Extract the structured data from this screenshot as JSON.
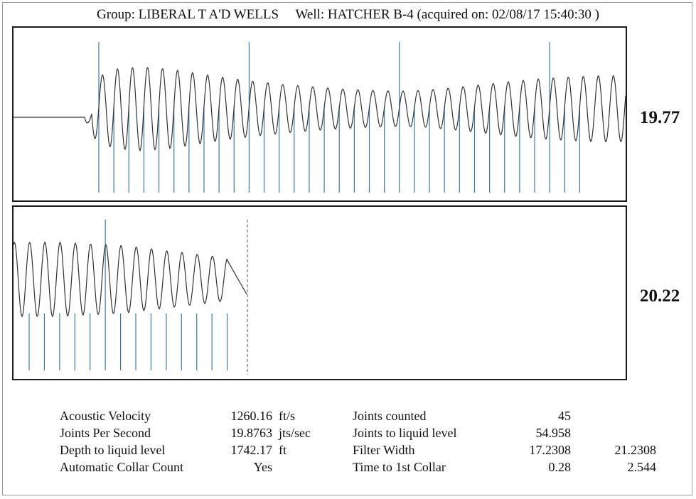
{
  "header": {
    "group": "Group: LIBERAL T A'D WELLS",
    "well": "Well: HATCHER B-4 (acquired on: 02/08/17 15:40:30 )"
  },
  "panels": {
    "top_rate": "19.77",
    "bottom_rate": "20.22"
  },
  "colors": {
    "waveform": "#333333",
    "collar_marker": "#3b7ab0",
    "frame": "#1a1a1a"
  },
  "stats": {
    "rows": [
      {
        "label1": "Acoustic Velocity",
        "val1": "1260.16",
        "unit1": "ft/s",
        "label2": "Joints counted",
        "val2": "45",
        "val3": ""
      },
      {
        "label1": "Joints Per Second",
        "val1": "19.8763",
        "unit1": "jts/sec",
        "label2": "Joints to liquid level",
        "val2": "54.958",
        "val3": ""
      },
      {
        "label1": "Depth to liquid level",
        "val1": "1742.17",
        "unit1": "ft",
        "label2": "Filter Width",
        "val2": "17.2308",
        "val3": "21.2308"
      },
      {
        "label1": "Automatic Collar Count",
        "val1": "Yes",
        "unit1": "",
        "label2": "Time to 1st Collar",
        "val2": "0.28",
        "val3": "2.544"
      }
    ]
  },
  "chart_data": [
    {
      "type": "line",
      "panel": "top",
      "rate_label": "19.77",
      "cycles_shown": 36,
      "collar_markers": 33,
      "tall_markers": 4,
      "amplitude_profile": [
        0.55,
        0.9,
        0.95,
        0.9,
        0.8,
        0.7,
        0.62,
        0.55,
        0.5,
        0.45,
        0.42,
        0.4,
        0.42,
        0.48,
        0.55,
        0.62,
        0.68,
        0.72,
        0.75,
        0.75
      ]
    },
    {
      "type": "line",
      "panel": "bottom",
      "rate_label": "20.22",
      "cycles_shown": 14,
      "collar_markers": 14,
      "tall_markers": 1,
      "amplitude_profile": [
        0.95,
        0.95,
        0.95,
        0.95,
        0.92,
        0.9,
        0.88,
        0.85,
        0.8,
        0.75,
        0.7,
        0.65,
        0.6,
        0.55
      ]
    }
  ]
}
